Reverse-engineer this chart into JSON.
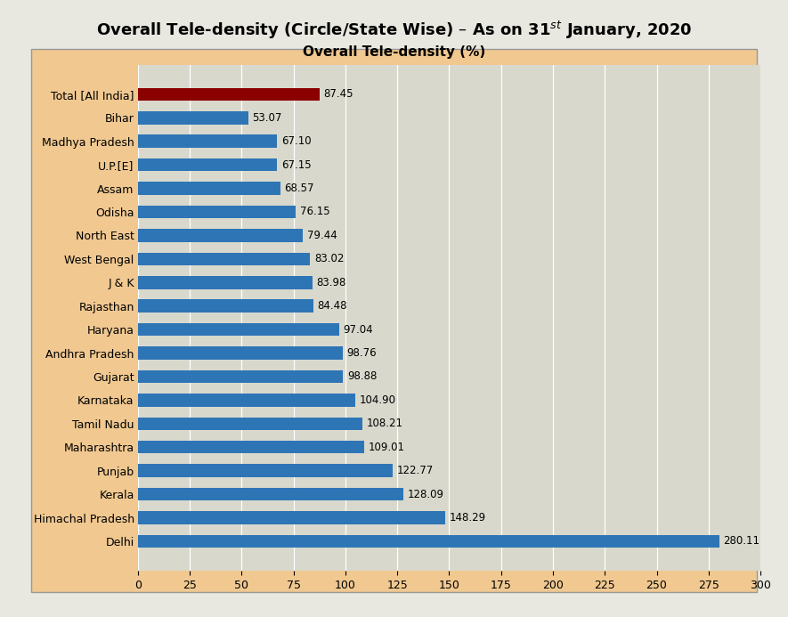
{
  "title": "Overall Tele-density (Circle/State Wise) – As on 31$^{st}$ January, 2020",
  "subtitle": "Overall Tele-density (%)",
  "categories": [
    "Total [All India]",
    "Bihar",
    "Madhya Pradesh",
    "U.P.[E]",
    "Assam",
    "Odisha",
    "North East",
    "West Bengal",
    "J & K",
    "Rajasthan",
    "Haryana",
    "Andhra Pradesh",
    "Gujarat",
    "Karnataka",
    "Tamil Nadu",
    "Maharashtra",
    "Punjab",
    "Kerala",
    "Himachal Pradesh",
    "Delhi"
  ],
  "values": [
    87.45,
    53.07,
    67.1,
    67.15,
    68.57,
    76.15,
    79.44,
    83.02,
    83.98,
    84.48,
    97.04,
    98.76,
    98.88,
    104.9,
    108.21,
    109.01,
    122.77,
    128.09,
    148.29,
    280.11
  ],
  "bar_colors": [
    "#8B0000",
    "#2E75B6",
    "#2E75B6",
    "#2E75B6",
    "#2E75B6",
    "#2E75B6",
    "#2E75B6",
    "#2E75B6",
    "#2E75B6",
    "#2E75B6",
    "#2E75B6",
    "#2E75B6",
    "#2E75B6",
    "#2E75B6",
    "#2E75B6",
    "#2E75B6",
    "#2E75B6",
    "#2E75B6",
    "#2E75B6",
    "#2E75B6"
  ],
  "xlim": [
    0,
    300
  ],
  "xticks": [
    0,
    25,
    50,
    75,
    100,
    125,
    150,
    175,
    200,
    225,
    250,
    275,
    300
  ],
  "title_bg_color": "#E8E8E0",
  "outer_bg_color": "#E8E8E0",
  "chart_bg_color": "#F0C890",
  "plot_bg_color": "#D8D8CC",
  "title_fontsize": 13,
  "subtitle_fontsize": 11,
  "label_fontsize": 9,
  "value_fontsize": 8.5,
  "tick_fontsize": 9,
  "bar_height": 0.55
}
